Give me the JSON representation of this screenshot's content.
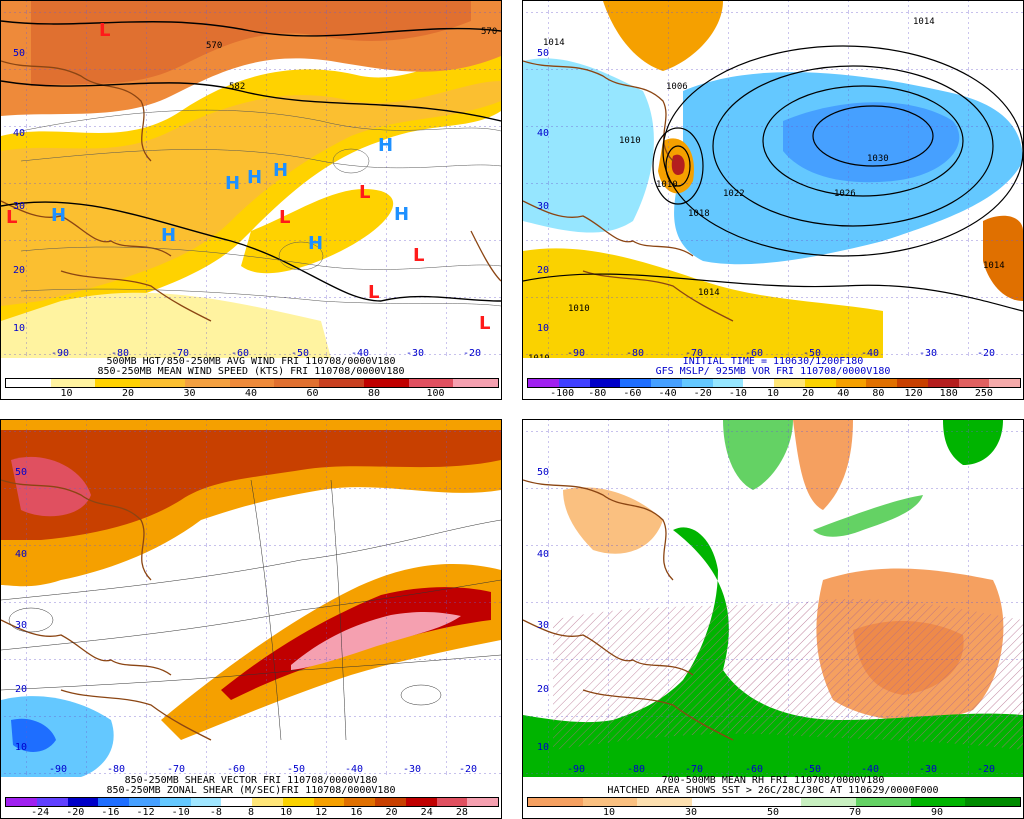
{
  "colors": {
    "coast": "#8b4513",
    "contour": "#000000",
    "high_marker": "#1e90ff",
    "low_marker": "#ff1a1a",
    "lonlat_label": "#0000cd"
  },
  "panels": [
    {
      "id": "wind",
      "caption1": "500MB HGT/850-250MB AVG WIND FRI 110708/0000V180",
      "caption2": "850-250MB MEAN WIND SPEED (KTS) FRI 110708/0000V180",
      "caption1_color": "#000000",
      "caption2_color": "#000000",
      "colorbar": [
        "#ffffff",
        "#fff3a0",
        "#ffd200",
        "#fbbf30",
        "#f3a040",
        "#ee8a3a",
        "#e07030",
        "#c84020",
        "#c00000",
        "#e05060",
        "#f5a0b0"
      ],
      "ticks": [
        "10",
        "20",
        "30",
        "40",
        "60",
        "80",
        "100"
      ],
      "lon_labels": [
        "-90",
        "-80",
        "-70",
        "-60",
        "-50",
        "-40",
        "-30",
        "-20"
      ],
      "lat_labels": [
        "50",
        "40",
        "30",
        "20",
        "10"
      ],
      "contour_labels": [
        "570",
        "570",
        "582"
      ],
      "high_marker": "H",
      "low_marker": "L"
    },
    {
      "id": "mslp",
      "caption1": "INITIAL TIME = 110630/1200F180",
      "caption2": "GFS MSLP/ 925MB VOR FRI 110708/0000V180",
      "caption1_color": "#0000cc",
      "caption2_color": "#0000cc",
      "colorbar": [
        "#a020f0",
        "#4040ff",
        "#0000c8",
        "#1e6eff",
        "#46a0ff",
        "#64c8ff",
        "#96e6ff",
        "#ffffff",
        "#ffe678",
        "#fad200",
        "#f5a000",
        "#e07000",
        "#c84000",
        "#b41e1e",
        "#e06060",
        "#f5aaaa"
      ],
      "ticks": [
        "-100",
        "-80",
        "-60",
        "-40",
        "-20",
        "-10",
        "10",
        "20",
        "40",
        "80",
        "120",
        "180",
        "250"
      ],
      "lon_labels": [
        "-90",
        "-80",
        "-70",
        "-60",
        "-50",
        "-40",
        "-30",
        "-20"
      ],
      "lat_labels": [
        "50",
        "40",
        "30",
        "20",
        "10"
      ],
      "contour_labels": [
        "1014",
        "1014",
        "1006",
        "1010",
        "1010",
        "1018",
        "1022",
        "1026",
        "1030",
        "1014",
        "1014",
        "1010",
        "1010"
      ]
    },
    {
      "id": "shear",
      "caption1": "850-250MB SHEAR VECTOR FRI 110708/0000V180",
      "caption2": "850-250MB ZONAL SHEAR (M/SEC)FRI 110708/0000V180",
      "caption1_color": "#000000",
      "caption2_color": "#000000",
      "colorbar": [
        "#a020f0",
        "#6040ff",
        "#0000c8",
        "#1e6eff",
        "#46a0ff",
        "#64c8ff",
        "#a0e6ff",
        "#ffffff",
        "#ffe678",
        "#fad200",
        "#f5a000",
        "#e07000",
        "#c84000",
        "#c00000",
        "#e05060",
        "#f5a0b0"
      ],
      "ticks": [
        "-24",
        "-20",
        "-16",
        "-12",
        "-10",
        "-8",
        "8",
        "10",
        "12",
        "16",
        "20",
        "24",
        "28"
      ],
      "lon_labels": [
        "-90",
        "-80",
        "-70",
        "-60",
        "-50",
        "-40",
        "-30",
        "-20"
      ],
      "lat_labels": [
        "50",
        "40",
        "30",
        "20",
        "10"
      ]
    },
    {
      "id": "rh",
      "caption1": "700-500MB MEAN RH FRI 110708/0000V180",
      "caption2": "HATCHED AREA SHOWS SST > 26C/28C/30C AT 110629/0000F000",
      "caption1_color": "#000000",
      "caption2_color": "#000000",
      "colorbar": [
        "#f5a060",
        "#fac080",
        "#fde0b0",
        "#ffffff",
        "#ffffff",
        "#c8f0c0",
        "#64d264",
        "#00b400",
        "#008c00"
      ],
      "ticks": [
        "10",
        "30",
        "50",
        "70",
        "90"
      ],
      "lon_labels": [
        "-90",
        "-80",
        "-70",
        "-60",
        "-50",
        "-40",
        "-30",
        "-20"
      ],
      "lat_labels": [
        "50",
        "40",
        "30",
        "20",
        "10"
      ]
    }
  ]
}
